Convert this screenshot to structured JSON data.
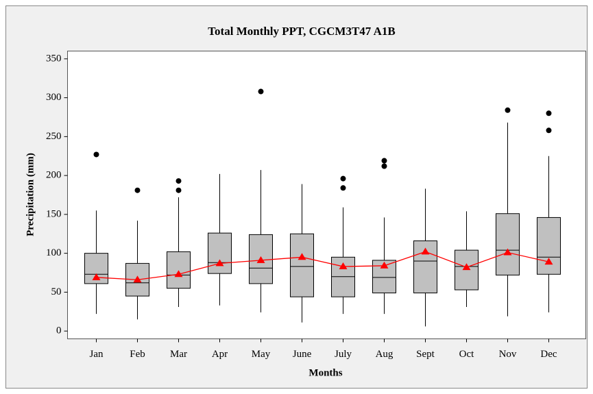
{
  "chart_data": {
    "type": "box",
    "title": "Total Monthly PPT, CGCM3T47 A1B",
    "xlabel": "Months",
    "ylabel": "Precipitation (mm)",
    "categories": [
      "Jan",
      "Feb",
      "Mar",
      "Apr",
      "May",
      "June",
      "July",
      "Aug",
      "Sept",
      "Oct",
      "Nov",
      "Dec"
    ],
    "boxes": [
      {
        "whisker_low": 22,
        "q1": 61,
        "median": 73,
        "q3": 100,
        "whisker_high": 155,
        "outliers": [
          227
        ]
      },
      {
        "whisker_low": 15,
        "q1": 45,
        "median": 62,
        "q3": 87,
        "whisker_high": 142,
        "outliers": [
          181
        ]
      },
      {
        "whisker_low": 31,
        "q1": 55,
        "median": 72,
        "q3": 102,
        "whisker_high": 172,
        "outliers": [
          193,
          181
        ]
      },
      {
        "whisker_low": 33,
        "q1": 74,
        "median": 88,
        "q3": 126,
        "whisker_high": 202,
        "outliers": []
      },
      {
        "whisker_low": 24,
        "q1": 61,
        "median": 81,
        "q3": 124,
        "whisker_high": 207,
        "outliers": [
          308
        ]
      },
      {
        "whisker_low": 11,
        "q1": 44,
        "median": 83,
        "q3": 125,
        "whisker_high": 189,
        "outliers": []
      },
      {
        "whisker_low": 22,
        "q1": 44,
        "median": 70,
        "q3": 95,
        "whisker_high": 159,
        "outliers": [
          196,
          184
        ]
      },
      {
        "whisker_low": 22,
        "q1": 49,
        "median": 69,
        "q3": 91,
        "whisker_high": 146,
        "outliers": [
          219,
          212
        ]
      },
      {
        "whisker_low": 6,
        "q1": 49,
        "median": 90,
        "q3": 116,
        "whisker_high": 183,
        "outliers": []
      },
      {
        "whisker_low": 31,
        "q1": 53,
        "median": 83,
        "q3": 104,
        "whisker_high": 154,
        "outliers": []
      },
      {
        "whisker_low": 19,
        "q1": 72,
        "median": 104,
        "q3": 151,
        "whisker_high": 268,
        "outliers": [
          284
        ]
      },
      {
        "whisker_low": 24,
        "q1": 73,
        "median": 95,
        "q3": 146,
        "whisker_high": 225,
        "outliers": [
          280,
          258
        ]
      }
    ],
    "means": [
      69,
      66,
      73,
      87,
      91,
      95,
      83,
      84,
      102,
      82,
      101,
      89
    ],
    "box_color": "#c0c0c0",
    "mean_color": "#ff0000",
    "ylim": [
      -10,
      360
    ],
    "yticks": [
      0,
      50,
      100,
      150,
      200,
      250,
      300,
      350
    ]
  }
}
